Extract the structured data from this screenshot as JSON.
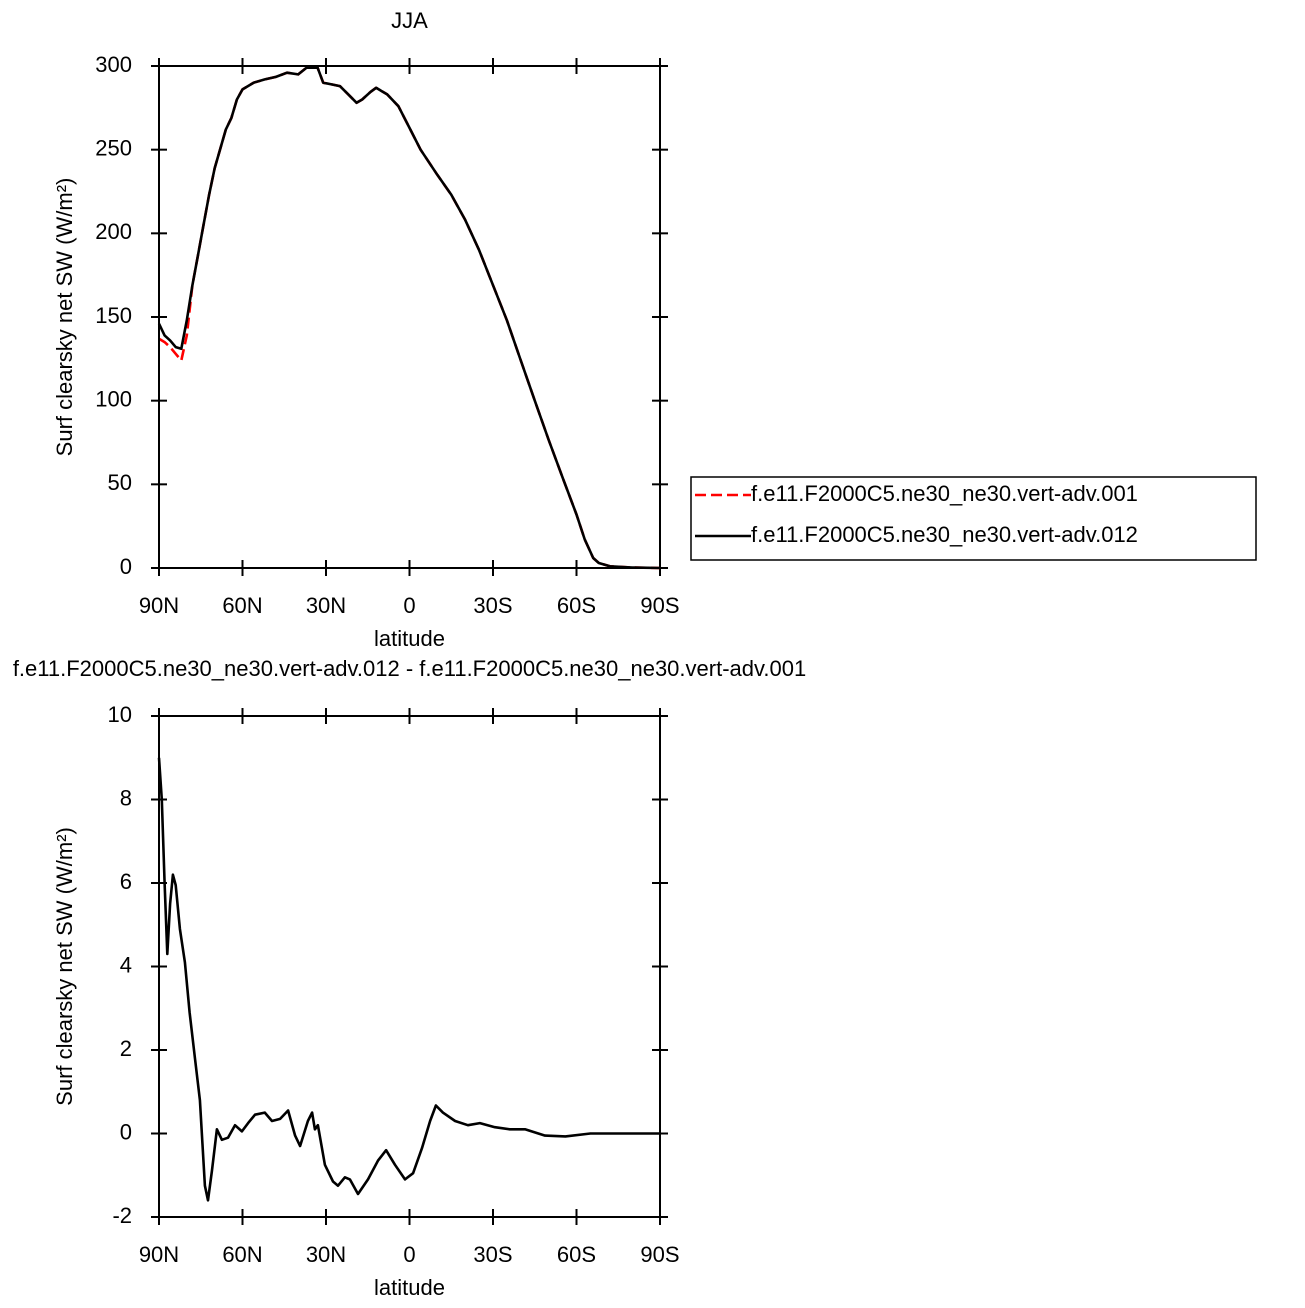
{
  "chart_data": [
    {
      "type": "line",
      "title": "JJA",
      "xlabel": "latitude",
      "ylabel": "Surf clearsky net SW (W/m²)",
      "x": [
        90,
        88,
        86,
        84,
        82,
        80,
        78,
        76,
        74,
        72,
        70,
        66,
        64,
        62,
        60,
        56,
        52,
        48,
        44,
        40,
        37,
        33,
        31,
        28,
        25,
        22,
        19,
        17,
        14,
        12,
        8,
        4,
        0,
        -4,
        -10,
        -15,
        -20,
        -25,
        -30,
        -35,
        -40,
        -45,
        -50,
        -55,
        -60,
        -63,
        -66,
        -68,
        -72,
        -80,
        -90
      ],
      "series": [
        {
          "name": "f.e11.F2000C5.ne30_ne30.vert-adv.001",
          "color": "#ff0000",
          "dash": true,
          "values": [
            137,
            135,
            132,
            128,
            124,
            139,
            169,
            187,
            205,
            223,
            239,
            262,
            269,
            280,
            286,
            290,
            292,
            293.5,
            296,
            295,
            299,
            299,
            290,
            289,
            288,
            283,
            278,
            280,
            284.5,
            287,
            283,
            276,
            263,
            250,
            235,
            223,
            208,
            190,
            169,
            148,
            124,
            100,
            76.5,
            54,
            32,
            17,
            6,
            3,
            1,
            0.3,
            0
          ]
        },
        {
          "name": "f.e11.F2000C5.ne30_ne30.vert-adv.012",
          "color": "#000000",
          "dash": false,
          "values": [
            146,
            139,
            136,
            132,
            131,
            148,
            169,
            187,
            205,
            223,
            239,
            262,
            269,
            280,
            286,
            290,
            292,
            293.5,
            296,
            295,
            299,
            299,
            290,
            289,
            288,
            283,
            278,
            280,
            284.5,
            287,
            283,
            276,
            263,
            250,
            235,
            223,
            208,
            190,
            169,
            148,
            124,
            100,
            76.5,
            54,
            32,
            17,
            6,
            3,
            1,
            0.3,
            0
          ]
        }
      ],
      "xlim": [
        90,
        -90
      ],
      "xticks": [
        {
          "value": 90,
          "label": "90N"
        },
        {
          "value": 60,
          "label": "60N"
        },
        {
          "value": 30,
          "label": "30N"
        },
        0,
        {
          "value": -30,
          "label": "30S"
        },
        {
          "value": -60,
          "label": "60S"
        },
        {
          "value": -90,
          "label": "90S"
        }
      ],
      "ylim": [
        0,
        300
      ],
      "yticks": [
        0,
        50,
        100,
        150,
        200,
        250,
        300
      ],
      "legend": "right"
    },
    {
      "type": "line",
      "title": "f.e11.F2000C5.ne30_ne30.vert-adv.012 - f.e11.F2000C5.ne30_ne30.vert-adv.001",
      "xlabel": "latitude",
      "ylabel": "Surf clearsky net SW (W/m²)",
      "color": "#000000",
      "x": [
        90,
        89,
        88,
        87,
        86,
        85,
        84,
        82.5,
        80.7,
        79,
        77,
        75.3,
        73.5,
        72.4,
        71,
        69.2,
        67.4,
        65.2,
        62.7,
        60.2,
        58,
        55.5,
        52,
        49.4,
        46.5,
        43.6,
        41.1,
        39.3,
        36.5,
        35,
        34,
        32.9,
        30.4,
        27.5,
        25.7,
        23.2,
        21.4,
        18.5,
        14.9,
        11.3,
        8.4,
        5.2,
        1.6,
        -1.3,
        -4.5,
        -7.4,
        -9.5,
        -12,
        -16.4,
        -21,
        -25.3,
        -30.7,
        -36,
        -41.5,
        -48.7,
        -56,
        -65,
        -75.6,
        -90
      ],
      "values": [
        9.0,
        8.0,
        6.0,
        4.3,
        5.5,
        6.2,
        5.95,
        4.9,
        4.1,
        2.9,
        1.75,
        0.8,
        -1.25,
        -1.6,
        -0.9,
        0.1,
        -0.15,
        -0.1,
        0.2,
        0.05,
        0.25,
        0.45,
        0.5,
        0.3,
        0.35,
        0.55,
        -0.05,
        -0.3,
        0.3,
        0.5,
        0.1,
        0.2,
        -0.75,
        -1.15,
        -1.25,
        -1.05,
        -1.1,
        -1.45,
        -1.1,
        -0.65,
        -0.4,
        -0.75,
        -1.1,
        -0.95,
        -0.35,
        0.3,
        0.67,
        0.5,
        0.3,
        0.2,
        0.25,
        0.15,
        0.1,
        0.1,
        -0.05,
        -0.07,
        0,
        0,
        0
      ],
      "xlim": [
        90,
        -90
      ],
      "xticks": [
        {
          "value": 90,
          "label": "90N"
        },
        {
          "value": 60,
          "label": "60N"
        },
        {
          "value": 30,
          "label": "30N"
        },
        0,
        {
          "value": -30,
          "label": "30S"
        },
        {
          "value": -60,
          "label": "60S"
        },
        {
          "value": -90,
          "label": "90S"
        }
      ],
      "ylim": [
        -2,
        10
      ],
      "yticks": [
        -2,
        0,
        2,
        4,
        6,
        8,
        10
      ]
    }
  ]
}
